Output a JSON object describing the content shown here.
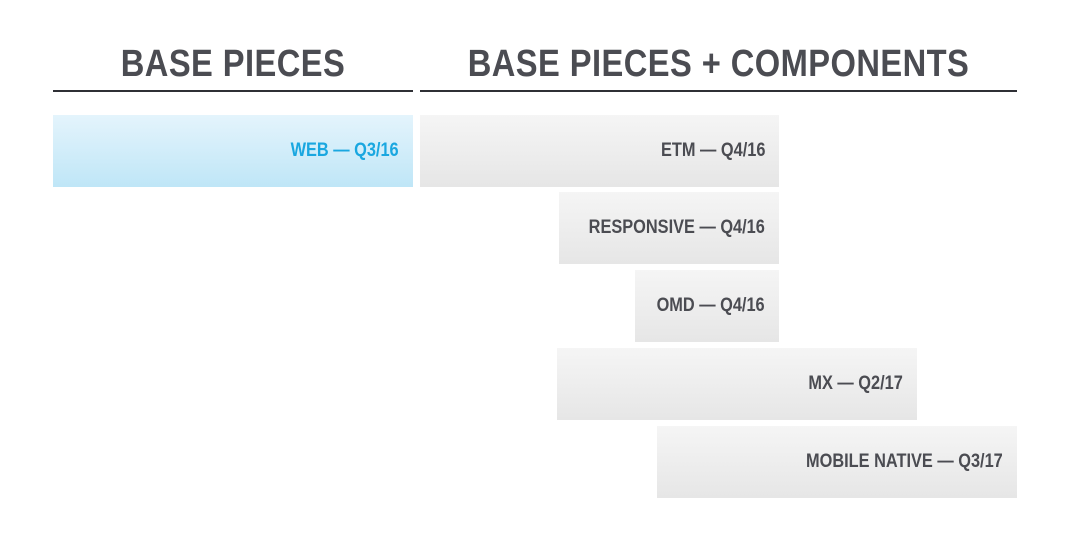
{
  "headings": {
    "left": "BASE PIECES",
    "right": "BASE PIECES + COMPONENTS"
  },
  "bars": {
    "web": "WEB — Q3/16",
    "etm": "ETM — Q4/16",
    "responsive": "RESPONSIVE — Q4/16",
    "omd": "OMD — Q4/16",
    "mx": "MX — Q2/17",
    "mobile_native": "MOBILE NATIVE — Q3/17"
  },
  "colors": {
    "heading": "#4b4c52",
    "rule": "#2f3035",
    "bar_gray": "#e6e6e6",
    "bar_highlight": "#bfe6f7",
    "highlight_text": "#1aa7e0"
  }
}
